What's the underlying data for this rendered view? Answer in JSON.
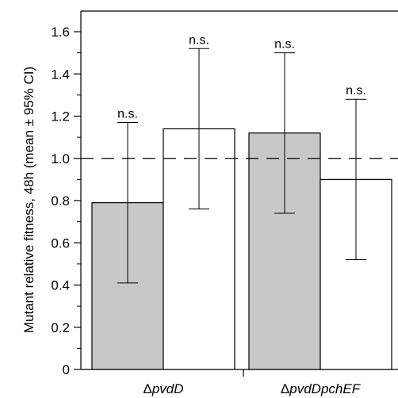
{
  "chart_data": {
    "type": "bar",
    "title": "",
    "xlabel": "",
    "ylabel": "Mutant relative fitness, 48h (mean ± 95% CI)",
    "ylim": [
      0,
      1.7
    ],
    "yticks": [
      0,
      0.2,
      0.4,
      0.6,
      0.8,
      1.0,
      1.2,
      1.4,
      1.6
    ],
    "ytick_labels": [
      "0",
      "0.2",
      "0.4",
      "0.6",
      "0.8",
      "1.0",
      "1.2",
      "1.4",
      "1.6"
    ],
    "reference_line": {
      "y": 1.0,
      "style": "dashed"
    },
    "groups": [
      {
        "label_prefix": "Δ",
        "label_italic": "pvdD",
        "bars": [
          {
            "fill": "#c8c8c8",
            "value": 0.79,
            "ci_low": 0.41,
            "ci_high": 1.17,
            "annotation": "n.s."
          },
          {
            "fill": "#ffffff",
            "value": 1.14,
            "ci_low": 0.76,
            "ci_high": 1.52,
            "annotation": "n.s."
          }
        ]
      },
      {
        "label_prefix": "Δ",
        "label_italic": "pvdDpchEF",
        "bars": [
          {
            "fill": "#c8c8c8",
            "value": 1.12,
            "ci_low": 0.74,
            "ci_high": 1.5,
            "annotation": "n.s."
          },
          {
            "fill": "#ffffff",
            "value": 0.9,
            "ci_low": 0.52,
            "ci_high": 1.28,
            "annotation": "n.s."
          }
        ]
      }
    ],
    "grid": false,
    "legend": "none"
  }
}
